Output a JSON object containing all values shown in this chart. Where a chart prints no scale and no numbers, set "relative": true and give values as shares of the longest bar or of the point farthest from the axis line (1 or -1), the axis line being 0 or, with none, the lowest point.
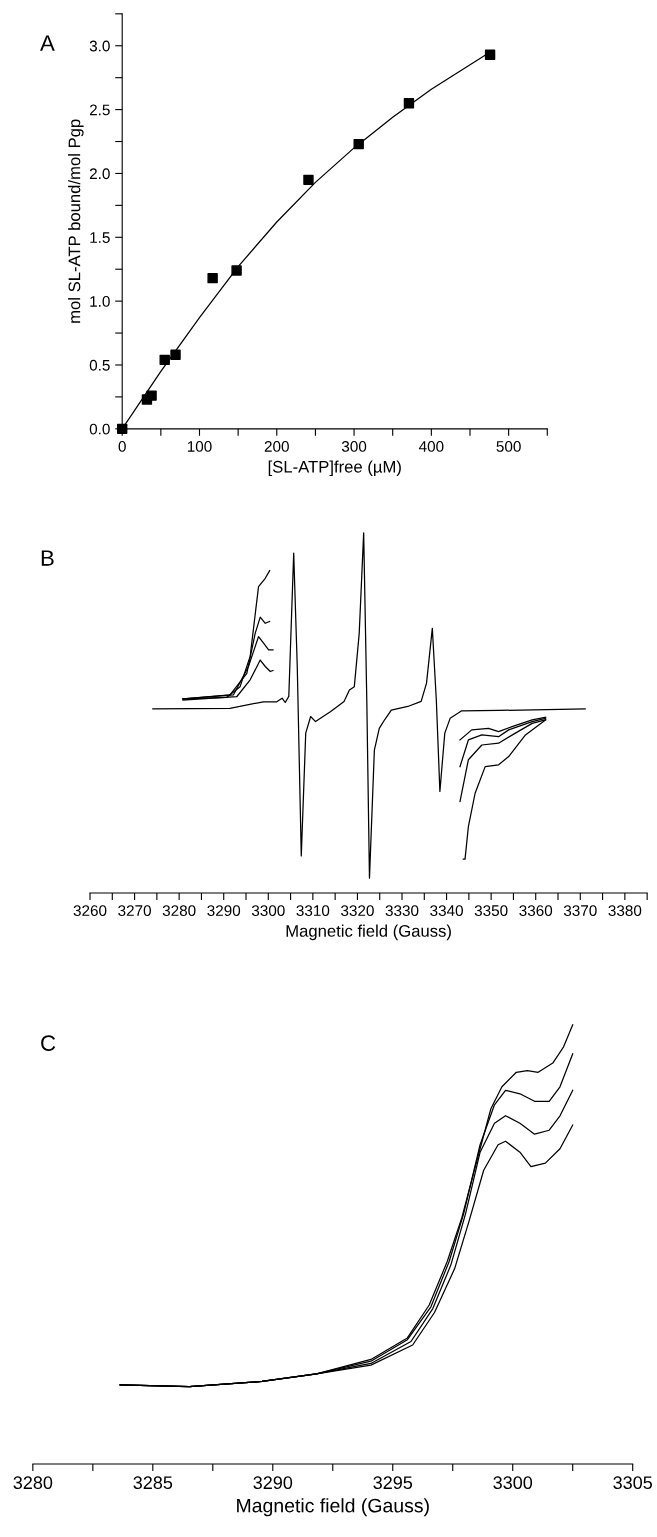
{
  "chart_data": [
    {
      "type": "scatter",
      "title": "A",
      "xlabel": "[SL-ATP]free (µM)",
      "ylabel": "mol SL-ATP bound/mol Pgp",
      "xlim": [
        0,
        550
      ],
      "xticks": [
        0,
        {
          "value": 50,
          "label": null
        },
        100,
        {
          "value": 150,
          "label": null
        },
        200,
        {
          "value": 250,
          "label": null
        },
        300,
        {
          "value": 350,
          "label": null
        },
        400,
        {
          "value": 450,
          "label": null
        },
        500,
        {
          "value": 550,
          "label": null
        }
      ],
      "ylim": [
        0,
        3.25
      ],
      "yticks": [
        {
          "value": 0,
          "label": "0.0"
        },
        {
          "value": 0.25,
          "label": null
        },
        {
          "value": 0.5,
          "label": "0.5"
        },
        {
          "value": 0.75,
          "label": null
        },
        {
          "value": 1,
          "label": "1.0"
        },
        {
          "value": 1.25,
          "label": null
        },
        {
          "value": 1.5,
          "label": "1.5"
        },
        {
          "value": 1.75,
          "label": null
        },
        {
          "value": 2,
          "label": "2.0"
        },
        {
          "value": 2.25,
          "label": null
        },
        {
          "value": 2.5,
          "label": "2.5"
        },
        {
          "value": 2.75,
          "label": null
        },
        {
          "value": 3,
          "label": "3.0"
        },
        {
          "value": 3.25,
          "label": null
        }
      ],
      "series": [
        {
          "type": "scatter",
          "color": "#000000",
          "marker": "square",
          "x": [
            0,
            32,
            38,
            55,
            69,
            117,
            148,
            241,
            306,
            371,
            476
          ],
          "values": [
            0,
            0.23,
            0.26,
            0.54,
            0.58,
            1.18,
            1.24,
            1.95,
            2.23,
            2.55,
            2.93
          ]
        },
        {
          "type": "line",
          "color": "#000000",
          "marker": "none",
          "line_style": "solid",
          "x": [
            0,
            50,
            100,
            150,
            200,
            250,
            300,
            350,
            400,
            476
          ],
          "values": [
            0,
            0.45,
            0.87,
            1.27,
            1.62,
            1.93,
            2.2,
            2.44,
            2.66,
            2.95
          ]
        }
      ]
    },
    {
      "type": "line",
      "title": "B",
      "xlabel": "Magnetic field (Gauss)",
      "relative": true,
      "tick_labels": "x",
      "xlim": [
        3260,
        3385
      ],
      "xticks": [
        3260,
        {
          "value": 3265,
          "label": null
        },
        3270,
        {
          "value": 3275,
          "label": null
        },
        3280,
        {
          "value": 3285,
          "label": null
        },
        3290,
        {
          "value": 3295,
          "label": null
        },
        3300,
        {
          "value": 3305,
          "label": null
        },
        3310,
        {
          "value": 3315,
          "label": null
        },
        3320,
        {
          "value": 3325,
          "label": null
        },
        3330,
        {
          "value": 3335,
          "label": null
        },
        3340,
        {
          "value": 3345,
          "label": null
        },
        3350,
        {
          "value": 3355,
          "label": null
        },
        3360,
        {
          "value": 3365,
          "label": null
        },
        3370,
        {
          "value": 3375,
          "label": null
        },
        3380,
        {
          "value": 3385,
          "label": null
        }
      ],
      "marker": "none",
      "line_style": "solid",
      "series": [
        {
          "color": "#000000",
          "x": [
            3274.1,
            3291.4,
            3298.9,
            3301.9,
            3303.1,
            3303.8,
            3304.6,
            3305.7,
            3306.5,
            3307.4,
            3308.4,
            3309.5,
            3310.6,
            3314.0,
            3317.0,
            3318.2,
            3319.3,
            3320.4,
            3321.4,
            3322.1,
            3322.7,
            3323.8,
            3324.9,
            3326.1,
            3327.6,
            3331.3,
            3334.3,
            3335.5,
            3336.8,
            3337.7,
            3338.5,
            3339.6,
            3340.8,
            3343.4,
            3351.7,
            3371.1
          ],
          "values": [
            0.511,
            0.513,
            0.531,
            0.531,
            0.541,
            0.529,
            0.546,
            0.944,
            0.629,
            0.103,
            0.444,
            0.49,
            0.476,
            0.504,
            0.532,
            0.564,
            0.573,
            0.721,
            1.0,
            0.536,
            0.041,
            0.397,
            0.457,
            0.481,
            0.508,
            0.518,
            0.532,
            0.583,
            0.735,
            0.536,
            0.282,
            0.444,
            0.485,
            0.506,
            0.507,
            0.511
          ]
        },
        {
          "color": "#000000",
          "x": [
            3280.86,
            3290.65,
            3293.67,
            3295.93,
            3297.81,
            3299.32,
            3300.3
          ],
          "values": [
            0.539,
            0.543,
            0.573,
            0.657,
            0.851,
            0.874,
            0.895
          ]
        },
        {
          "color": "#000000",
          "x": [
            3280.86,
            3291.41,
            3295.18,
            3297.06,
            3298.19,
            3299.32,
            3300.3
          ],
          "values": [
            0.539,
            0.55,
            0.61,
            0.721,
            0.766,
            0.749,
            0.754
          ]
        },
        {
          "color": "#000000",
          "x": [
            3280.86,
            3292.16,
            3295.55,
            3297.81,
            3298.94,
            3300.07,
            3301.05
          ],
          "values": [
            0.539,
            0.55,
            0.629,
            0.712,
            0.694,
            0.675,
            0.675
          ]
        },
        {
          "color": "#000000",
          "x": [
            3280.86,
            3292.92,
            3295.93,
            3298.19,
            3299.32,
            3300.45,
            3301.05
          ],
          "values": [
            0.536,
            0.545,
            0.592,
            0.647,
            0.629,
            0.615,
            0.618
          ]
        },
        {
          "color": "#000000",
          "x": [
            3343.01,
            3345.65,
            3349.41,
            3351.67,
            3354.69,
            3359.21,
            3362.22
          ],
          "values": [
            0.425,
            0.453,
            0.457,
            0.448,
            0.462,
            0.481,
            0.488
          ]
        },
        {
          "color": "#000000",
          "x": [
            3343.01,
            3344.89,
            3347.91,
            3351.67,
            3353.93,
            3359.21,
            3362.22
          ],
          "values": [
            0.351,
            0.425,
            0.439,
            0.434,
            0.453,
            0.476,
            0.485
          ]
        },
        {
          "color": "#000000",
          "x": [
            3343.01,
            3344.89,
            3347.91,
            3351.67,
            3355.44,
            3359.21,
            3362.22
          ],
          "values": [
            0.254,
            0.37,
            0.411,
            0.416,
            0.444,
            0.471,
            0.481
          ]
        },
        {
          "color": "#000000",
          "x": [
            3343.76,
            3344.14,
            3344.89,
            3346.4,
            3348.66,
            3351.67,
            3353.93,
            3357.7,
            3362.22
          ],
          "values": [
            0.094,
            0.094,
            0.184,
            0.277,
            0.351,
            0.356,
            0.379,
            0.439,
            0.481
          ]
        }
      ]
    },
    {
      "type": "line",
      "title": "C",
      "xlabel": "Magnetic field (Gauss)",
      "relative": true,
      "tick_labels": "x",
      "xlim": [
        3280,
        3305
      ],
      "xticks": [
        3280,
        {
          "value": 3282.5,
          "label": null
        },
        3285,
        {
          "value": 3287.5,
          "label": null
        },
        3290,
        {
          "value": 3292.5,
          "label": null
        },
        3295,
        {
          "value": 3297.5,
          "label": null
        },
        3300,
        {
          "value": 3302.5,
          "label": null
        },
        3305
      ],
      "marker": "none",
      "line_style": "solid",
      "series": [
        {
          "color": "#000000",
          "x": [
            3283.64,
            3286.52,
            3289.55,
            3291.82,
            3294.09,
            3295.61,
            3296.52,
            3297.27,
            3297.88,
            3298.48,
            3299.09,
            3299.55,
            3300.15,
            3300.61,
            3301.06,
            3301.67,
            3302.12,
            3302.5
          ],
          "values": [
            0.18,
            0.176,
            0.188,
            0.205,
            0.238,
            0.287,
            0.362,
            0.461,
            0.561,
            0.685,
            0.809,
            0.859,
            0.892,
            0.896,
            0.892,
            0.913,
            0.95,
            1.0
          ]
        },
        {
          "color": "#000000",
          "x": [
            3283.64,
            3286.52,
            3289.55,
            3291.82,
            3294.09,
            3295.61,
            3296.59,
            3297.35,
            3297.95,
            3298.64,
            3299.24,
            3299.7,
            3300.3,
            3300.91,
            3301.52,
            3301.97,
            3302.5
          ],
          "values": [
            0.18,
            0.176,
            0.188,
            0.205,
            0.234,
            0.283,
            0.358,
            0.461,
            0.569,
            0.727,
            0.818,
            0.851,
            0.843,
            0.826,
            0.826,
            0.859,
            0.934
          ]
        },
        {
          "color": "#000000",
          "x": [
            3283.64,
            3286.52,
            3289.55,
            3291.82,
            3294.09,
            3295.76,
            3296.67,
            3297.42,
            3298.03,
            3298.64,
            3299.24,
            3299.7,
            3300.3,
            3300.91,
            3301.52,
            3301.97,
            3302.5
          ],
          "values": [
            0.18,
            0.176,
            0.188,
            0.205,
            0.229,
            0.279,
            0.354,
            0.453,
            0.569,
            0.71,
            0.776,
            0.793,
            0.776,
            0.751,
            0.76,
            0.793,
            0.851
          ]
        },
        {
          "color": "#000000",
          "x": [
            3283.64,
            3286.52,
            3289.55,
            3291.82,
            3294.09,
            3295.83,
            3296.74,
            3297.58,
            3298.18,
            3298.79,
            3299.39,
            3299.7,
            3300.3,
            3300.76,
            3301.36,
            3301.97,
            3302.5
          ],
          "values": [
            0.18,
            0.176,
            0.188,
            0.205,
            0.225,
            0.271,
            0.345,
            0.445,
            0.553,
            0.669,
            0.727,
            0.735,
            0.71,
            0.677,
            0.685,
            0.718,
            0.772
          ]
        }
      ]
    }
  ]
}
